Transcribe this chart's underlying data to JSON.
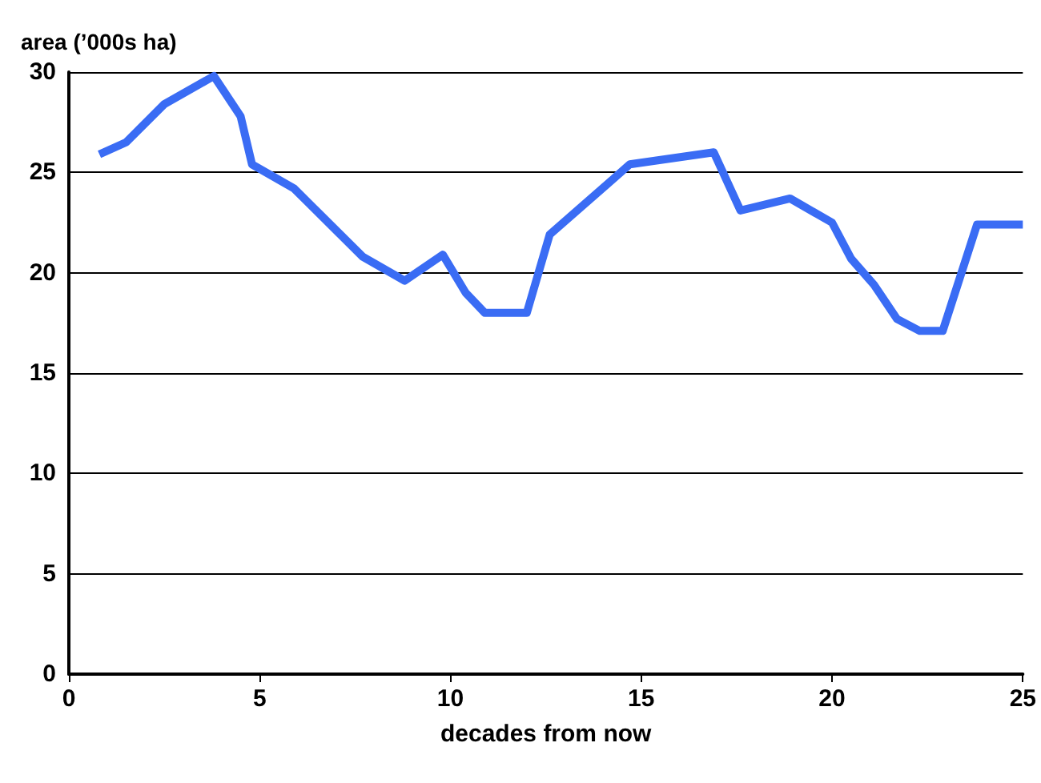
{
  "chart_data": {
    "type": "line",
    "ylabel": "area (’000s ha)",
    "xlabel": "decades from now",
    "x": [
      0.8,
      1.5,
      2.5,
      3.8,
      4.5,
      4.8,
      5.9,
      7.7,
      8.8,
      9.8,
      10.4,
      10.9,
      12,
      12.6,
      14.7,
      16.9,
      17.6,
      18.9,
      20,
      20.5,
      21.1,
      21.7,
      22.3,
      22.9,
      23.8,
      25
    ],
    "series": [
      {
        "color": "#3a6cf4",
        "values": [
          25.9,
          26.5,
          28.4,
          29.8,
          27.8,
          25.4,
          24.2,
          20.8,
          19.6,
          20.9,
          19,
          18,
          18,
          21.9,
          25.4,
          26,
          23.1,
          23.7,
          22.5,
          20.7,
          19.4,
          17.7,
          17.1,
          17.1,
          22.4,
          22.4
        ]
      }
    ],
    "xlim": [
      0,
      25
    ],
    "xticks": [
      0,
      5,
      10,
      15,
      20,
      25
    ],
    "ylim": [
      0,
      30
    ],
    "yticks": [
      0,
      5,
      10,
      15,
      20,
      25,
      30
    ],
    "grid": "y",
    "marker": "none",
    "line_style": "solid"
  }
}
